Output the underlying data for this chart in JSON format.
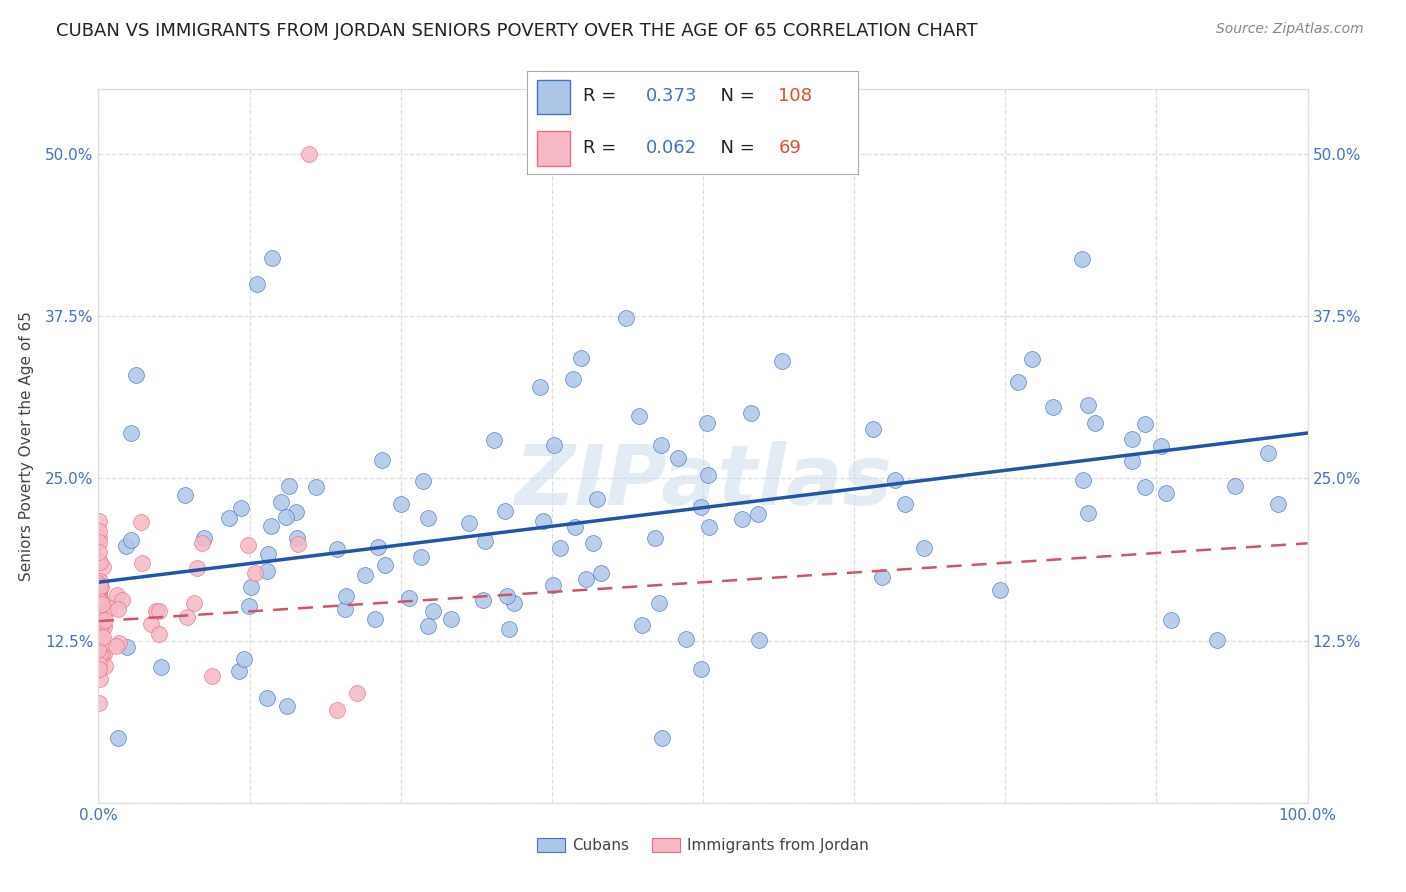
{
  "title": "CUBAN VS IMMIGRANTS FROM JORDAN SENIORS POVERTY OVER THE AGE OF 65 CORRELATION CHART",
  "source": "Source: ZipAtlas.com",
  "ylabel": "Seniors Poverty Over the Age of 65",
  "xlim": [
    0,
    1.0
  ],
  "ylim": [
    0,
    0.55
  ],
  "ytick_positions": [
    0.0,
    0.125,
    0.25,
    0.375,
    0.5
  ],
  "yticklabels": [
    "",
    "12.5%",
    "25.0%",
    "37.5%",
    "50.0%"
  ],
  "xtick_positions": [
    0.0,
    0.125,
    0.25,
    0.375,
    0.5,
    0.625,
    0.75,
    0.875,
    1.0
  ],
  "xticklabels": [
    "0.0%",
    "",
    "",
    "",
    "",
    "",
    "",
    "",
    "100.0%"
  ],
  "grid_color": "#dddddd",
  "background_color": "#ffffff",
  "tick_color": "#4472c4",
  "cubans": {
    "R": 0.373,
    "N": 108,
    "color": "#adc6e8",
    "edge_color": "#4472c4",
    "line_color": "#2255aa"
  },
  "jordanians": {
    "R": 0.062,
    "N": 69,
    "color": "#f5b8c4",
    "edge_color": "#e07080",
    "line_color": "#cc5566"
  },
  "watermark": "ZIPatlas",
  "title_fontsize": 13,
  "axis_label_fontsize": 11,
  "tick_fontsize": 11,
  "legend_fontsize": 13
}
